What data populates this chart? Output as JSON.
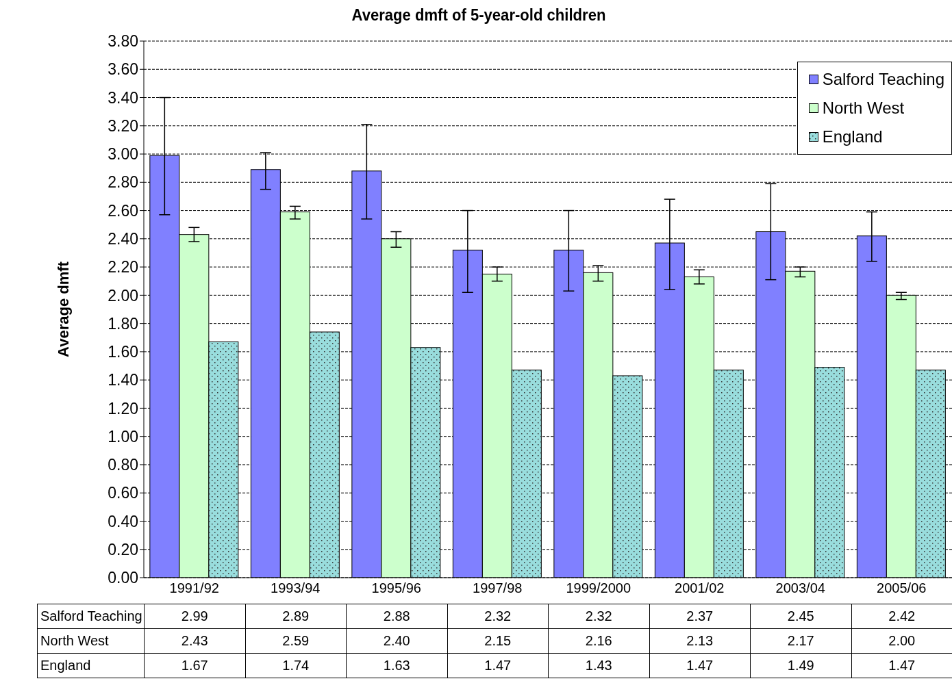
{
  "chart_data": {
    "type": "bar",
    "title": "Average dmft of 5-year-old children",
    "ylabel": "Average dmft",
    "categories": [
      "1991/92",
      "1993/94",
      "1995/96",
      "1997/98",
      "1999/2000",
      "2001/02",
      "2003/04",
      "2005/06"
    ],
    "series": [
      {
        "name": "Salford Teaching",
        "color": "#8080ff",
        "values": [
          2.99,
          2.89,
          2.88,
          2.32,
          2.32,
          2.37,
          2.45,
          2.42
        ],
        "value_labels": [
          "2.99",
          "2.89",
          "2.88",
          "2.32",
          "2.32",
          "2.37",
          "2.45",
          "2.42"
        ],
        "errors": [
          [
            2.57,
            3.4
          ],
          [
            2.75,
            3.01
          ],
          [
            2.54,
            3.21
          ],
          [
            2.02,
            2.6
          ],
          [
            2.03,
            2.6
          ],
          [
            2.04,
            2.68
          ],
          [
            2.11,
            2.79
          ],
          [
            2.24,
            2.59
          ]
        ]
      },
      {
        "name": "North West",
        "color": "#ccffcc",
        "values": [
          2.43,
          2.59,
          2.4,
          2.15,
          2.16,
          2.13,
          2.17,
          2.0
        ],
        "value_labels": [
          "2.43",
          "2.59",
          "2.40",
          "2.15",
          "2.16",
          "2.13",
          "2.17",
          "2.00"
        ],
        "errors": [
          [
            2.38,
            2.48
          ],
          [
            2.54,
            2.63
          ],
          [
            2.34,
            2.45
          ],
          [
            2.1,
            2.2
          ],
          [
            2.1,
            2.21
          ],
          [
            2.08,
            2.18
          ],
          [
            2.13,
            2.2
          ],
          [
            1.97,
            2.02
          ]
        ]
      },
      {
        "name": "England",
        "color": "#99dddd",
        "values": [
          1.67,
          1.74,
          1.63,
          1.47,
          1.43,
          1.47,
          1.49,
          1.47
        ],
        "value_labels": [
          "1.67",
          "1.74",
          "1.63",
          "1.47",
          "1.43",
          "1.47",
          "1.49",
          "1.47"
        ]
      }
    ],
    "ylim": [
      0,
      3.8
    ],
    "yticks": [
      {
        "value": 0,
        "label": "0.00"
      },
      {
        "value": 0.2,
        "label": "0.20"
      },
      {
        "value": 0.4,
        "label": "0.40"
      },
      {
        "value": 0.6,
        "label": "0.60"
      },
      {
        "value": 0.8,
        "label": "0.80"
      },
      {
        "value": 1,
        "label": "1.00"
      },
      {
        "value": 1.2,
        "label": "1.20"
      },
      {
        "value": 1.4,
        "label": "1.40"
      },
      {
        "value": 1.6,
        "label": "1.60"
      },
      {
        "value": 1.8,
        "label": "1.80"
      },
      {
        "value": 2,
        "label": "2.00"
      },
      {
        "value": 2.2,
        "label": "2.20"
      },
      {
        "value": 2.4,
        "label": "2.40"
      },
      {
        "value": 2.6,
        "label": "2.60"
      },
      {
        "value": 2.8,
        "label": "2.80"
      },
      {
        "value": 3,
        "label": "3.00"
      },
      {
        "value": 3.2,
        "label": "3.20"
      },
      {
        "value": 3.4,
        "label": "3.40"
      },
      {
        "value": 3.6,
        "label": "3.60"
      },
      {
        "value": 3.8,
        "label": "3.80"
      }
    ],
    "grid": "y",
    "legend": "top right"
  }
}
